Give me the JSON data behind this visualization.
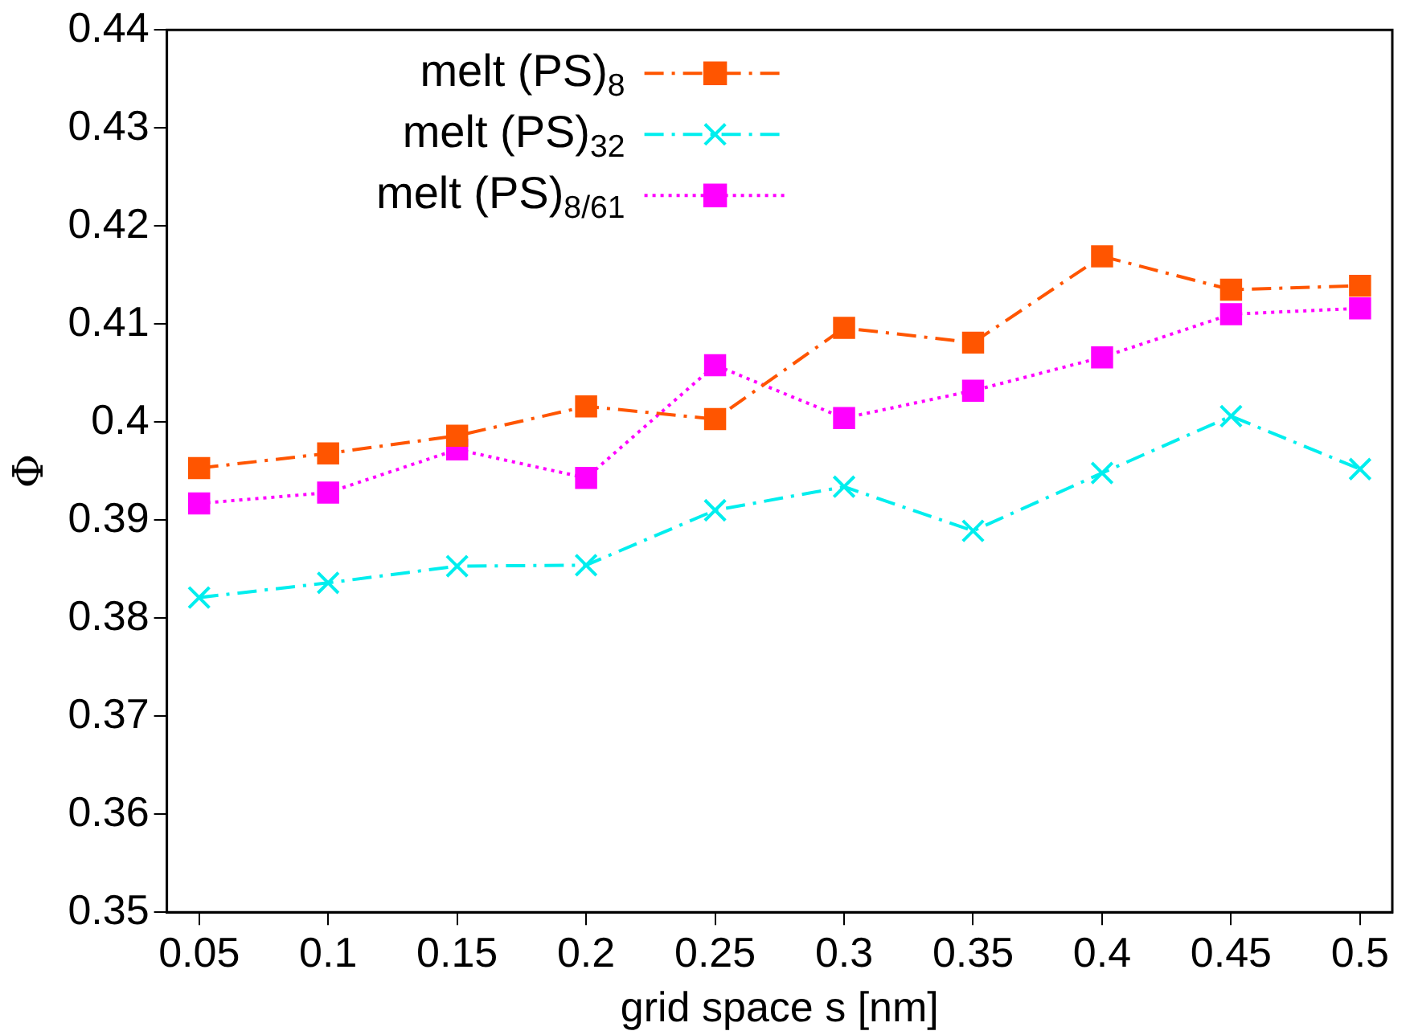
{
  "chart_data": {
    "type": "line",
    "xlabel": "grid space s [nm]",
    "ylabel": "Φ",
    "x": [
      0.05,
      0.1,
      0.15,
      0.2,
      0.25,
      0.3,
      0.35,
      0.4,
      0.45,
      0.5
    ],
    "xlim": [
      0.0375,
      0.5125
    ],
    "xticks": [
      0.05,
      0.1,
      0.15,
      0.2,
      0.25,
      0.3,
      0.35,
      0.4,
      0.45,
      0.5
    ],
    "ylim": [
      0.35,
      0.44
    ],
    "yticks": [
      0.35,
      0.36,
      0.37,
      0.38,
      0.39,
      0.4,
      0.41,
      0.42,
      0.43,
      0.44
    ],
    "grid": false,
    "legend": "top",
    "series": [
      {
        "name": "melt (PS)$_{8}$",
        "color": "#ff5500",
        "marker": "square",
        "line_style": "dashed",
        "values": [
          0.3953,
          0.3968,
          0.3986,
          0.4016,
          0.4003,
          0.4096,
          0.4081,
          0.4169,
          0.4135,
          0.4139
        ]
      },
      {
        "name": "melt (PS)$_{32}$",
        "color": "#00eeee",
        "marker": "cross",
        "line_style": "dashed",
        "values": [
          0.3821,
          0.3836,
          0.3853,
          0.3854,
          0.391,
          0.3934,
          0.3889,
          0.3948,
          0.4006,
          0.3952
        ]
      },
      {
        "name": "melt (PS)$_{8/61}$",
        "color": "#ff00ff",
        "marker": "square",
        "line_style": "dotted",
        "values": [
          0.3917,
          0.3928,
          0.3972,
          0.3943,
          0.4058,
          0.4004,
          0.4032,
          0.4066,
          0.411,
          0.4116
        ]
      }
    ]
  }
}
